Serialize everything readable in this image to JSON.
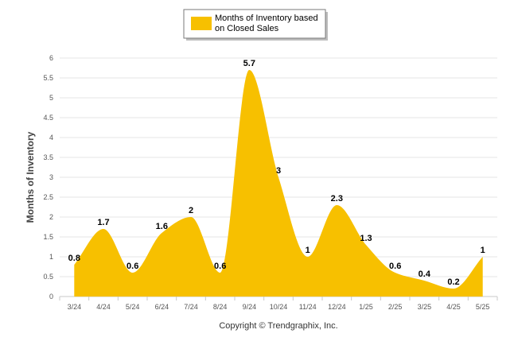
{
  "chart_data": {
    "type": "area",
    "categories": [
      "3/24",
      "4/24",
      "5/24",
      "6/24",
      "7/24",
      "8/24",
      "9/24",
      "10/24",
      "11/24",
      "12/24",
      "1/25",
      "2/25",
      "3/25",
      "4/25",
      "5/25"
    ],
    "series": [
      {
        "name": "Months of Inventory based on Closed Sales",
        "values": [
          0.8,
          1.7,
          0.6,
          1.6,
          2,
          0.6,
          5.7,
          3,
          1,
          2.3,
          1.3,
          0.6,
          0.4,
          0.2,
          1
        ],
        "data_labels": [
          "0.8",
          "1.7",
          "0.6",
          "1.6",
          "2",
          "0.6",
          "5.7",
          "3",
          "1",
          "2.3",
          "1.3",
          "0.6",
          "0.4",
          "0.2",
          "1"
        ],
        "color": "#f7c000"
      }
    ],
    "ylabel": "Months of Inventory",
    "xlabel": "",
    "ylim": [
      0,
      6
    ],
    "yticks": [
      "0",
      "0.5",
      "1",
      "1.5",
      "2",
      "2.5",
      "3",
      "3.5",
      "4",
      "4.5",
      "5",
      "5.5",
      "6"
    ],
    "legend_lines": [
      "Months of Inventory based",
      "on Closed Sales"
    ],
    "legend_position": "top-center",
    "grid": true,
    "footer": "Copyright © Trendgraphix, Inc."
  },
  "colors": {
    "area": "#f7c000",
    "grid": "#e6e6e6",
    "axis_text": "#555555",
    "label_text": "#000000"
  }
}
